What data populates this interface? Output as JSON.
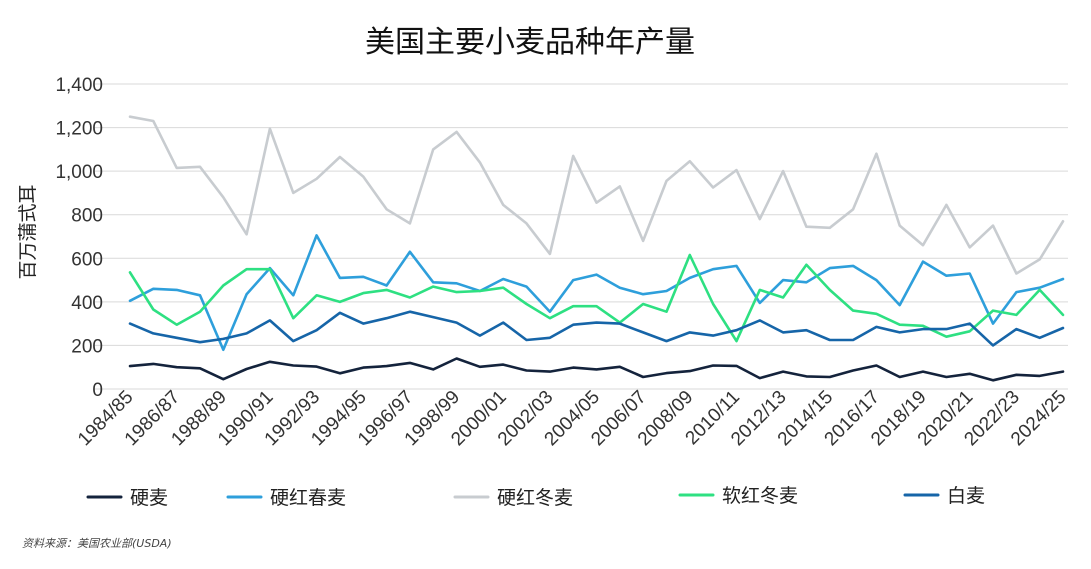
{
  "chart_data": {
    "type": "line",
    "title": "美国主要小麦品种年产量",
    "ylabel": "百万蒲式耳",
    "xlabel": "",
    "ylim": [
      0,
      1400
    ],
    "yticks": [
      0,
      200,
      400,
      600,
      800,
      1000,
      1200,
      1400
    ],
    "ytick_labels": [
      "0",
      "200",
      "400",
      "600",
      "800",
      "1,000",
      "1,200",
      "1,400"
    ],
    "x": [
      "1984/85",
      "1985/86",
      "1986/87",
      "1987/88",
      "1988/89",
      "1989/90",
      "1990/91",
      "1991/92",
      "1992/93",
      "1993/94",
      "1994/95",
      "1995/96",
      "1996/97",
      "1997/98",
      "1998/99",
      "1999/00",
      "2000/01",
      "2001/02",
      "2002/03",
      "2003/04",
      "2004/05",
      "2005/06",
      "2006/07",
      "2007/08",
      "2008/09",
      "2009/10",
      "2010/11",
      "2011/12",
      "2012/13",
      "2013/14",
      "2014/15",
      "2015/16",
      "2016/17",
      "2017/18",
      "2018/19",
      "2019/20",
      "2020/21",
      "2021/22",
      "2022/23",
      "2023/24",
      "2024/25"
    ],
    "x_tick_labels": [
      "1984/85",
      "1986/87",
      "1988/89",
      "1990/91",
      "1992/93",
      "1994/95",
      "1996/97",
      "1998/99",
      "2000/01",
      "2002/03",
      "2004/05",
      "2006/07",
      "2008/09",
      "2010/11",
      "2012/13",
      "2014/15",
      "2016/17",
      "2018/19",
      "2020/21",
      "2022/23",
      "2024/25"
    ],
    "grid": true,
    "legend_position": "bottom",
    "series": [
      {
        "name": "硬麦",
        "color": "#14233c",
        "values": [
          105,
          115,
          100,
          95,
          45,
          92,
          125,
          108,
          103,
          72,
          98,
          105,
          120,
          90,
          140,
          102,
          112,
          85,
          80,
          98,
          90,
          102,
          55,
          73,
          82,
          108,
          106,
          50,
          80,
          58,
          55,
          85,
          108,
          55,
          80,
          55,
          70,
          40,
          65,
          60,
          80
        ]
      },
      {
        "name": "硬红春麦",
        "color": "#2e9fdb",
        "values": [
          405,
          460,
          455,
          430,
          180,
          435,
          555,
          430,
          705,
          510,
          515,
          475,
          630,
          490,
          485,
          450,
          505,
          470,
          355,
          500,
          525,
          465,
          435,
          450,
          510,
          550,
          565,
          395,
          500,
          490,
          555,
          565,
          500,
          385,
          585,
          520,
          530,
          300,
          445,
          465,
          505
        ]
      },
      {
        "name": "硬红冬麦",
        "color": "#c8ccd0",
        "values": [
          1250,
          1230,
          1015,
          1020,
          880,
          710,
          1195,
          900,
          965,
          1065,
          975,
          825,
          760,
          1100,
          1180,
          1040,
          845,
          760,
          620,
          1070,
          855,
          930,
          680,
          955,
          1045,
          925,
          1005,
          780,
          1000,
          745,
          740,
          825,
          1080,
          750,
          660,
          845,
          650,
          750,
          530,
          595,
          770
        ]
      },
      {
        "name": "软红冬麦",
        "color": "#2ee082",
        "values": [
          535,
          365,
          295,
          355,
          475,
          550,
          550,
          325,
          430,
          400,
          440,
          455,
          420,
          470,
          445,
          450,
          465,
          390,
          325,
          380,
          380,
          305,
          390,
          355,
          615,
          390,
          220,
          455,
          420,
          570,
          455,
          360,
          345,
          295,
          290,
          240,
          265,
          360,
          340,
          455,
          340
        ]
      },
      {
        "name": "白麦",
        "color": "#1665a8",
        "values": [
          300,
          255,
          235,
          215,
          230,
          255,
          315,
          220,
          270,
          350,
          300,
          325,
          355,
          330,
          305,
          245,
          305,
          225,
          235,
          295,
          305,
          300,
          260,
          220,
          260,
          245,
          270,
          315,
          260,
          270,
          225,
          225,
          285,
          260,
          275,
          275,
          300,
          200,
          275,
          235,
          280
        ]
      }
    ]
  },
  "source": "资料来源：美国农业部(USDA)"
}
